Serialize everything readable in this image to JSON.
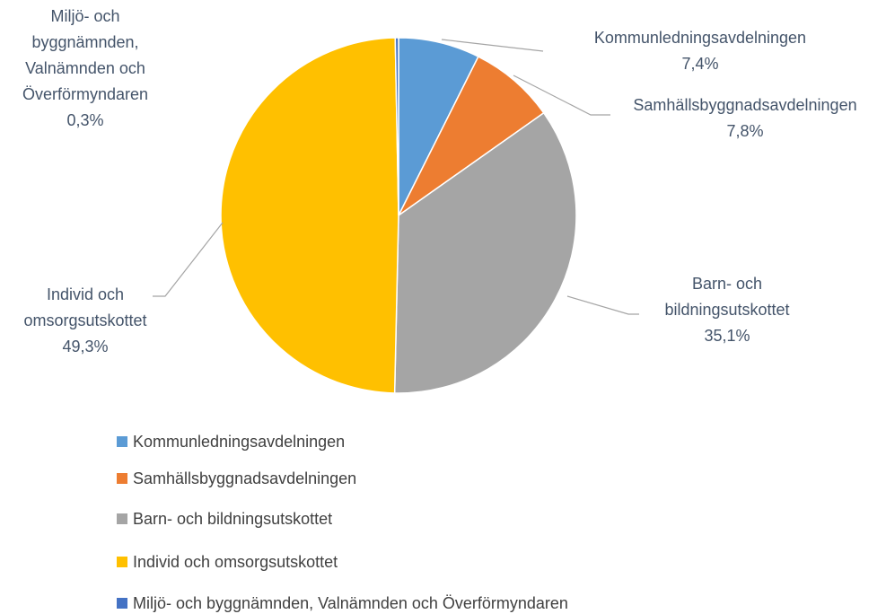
{
  "chart_data": {
    "type": "pie",
    "categories": [
      "Kommunledningsavdelningen",
      "Samhällsbyggnadsavdelningen",
      "Barn- och bildningsutskottet",
      "Individ och omsorgsutskottet",
      "Miljö- och byggnämnden, Valnämnden och Överförmyndaren"
    ],
    "values": [
      7.4,
      7.8,
      35.1,
      49.3,
      0.3
    ],
    "value_labels": [
      "7,4%",
      "7,8%",
      "35,1%",
      "49,3%",
      "0,3%"
    ],
    "colors": [
      "#5b9bd5",
      "#ed7d31",
      "#a5a5a5",
      "#ffc000",
      "#4472c4"
    ],
    "legend": "bottom"
  }
}
